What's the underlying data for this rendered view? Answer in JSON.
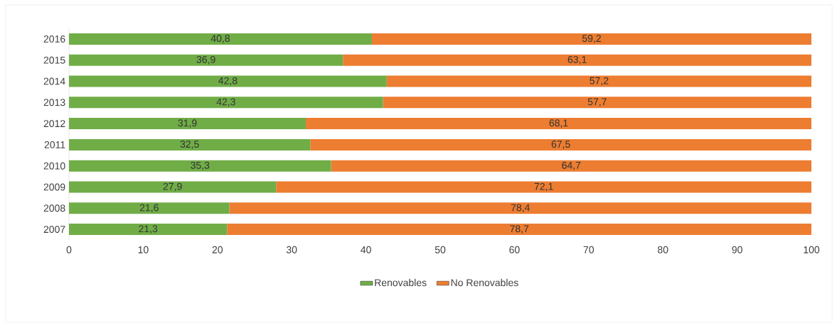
{
  "chart_data": {
    "type": "bar",
    "orientation": "horizontal",
    "stacked": true,
    "categories": [
      "2016",
      "2015",
      "2014",
      "2013",
      "2012",
      "2011",
      "2010",
      "2009",
      "2008",
      "2007"
    ],
    "series": [
      {
        "name": "Renovables",
        "color": "#70ad47",
        "values": [
          40.8,
          36.9,
          42.8,
          42.3,
          31.9,
          32.5,
          35.3,
          27.9,
          21.6,
          21.3
        ],
        "value_labels": [
          "40,8",
          "36,9",
          "42,8",
          "42,3",
          "31,9",
          "32,5",
          "35,3",
          "27,9",
          "21,6",
          "21,3"
        ]
      },
      {
        "name": "No Renovables",
        "color": "#ed7d31",
        "values": [
          59.2,
          63.1,
          57.2,
          57.7,
          68.1,
          67.5,
          64.7,
          72.1,
          78.4,
          78.7
        ],
        "value_labels": [
          "59,2",
          "63,1",
          "57,2",
          "57,7",
          "68,1",
          "67,5",
          "64,7",
          "72,1",
          "78,4",
          "78,7"
        ]
      }
    ],
    "xlim": [
      0,
      100
    ],
    "xticks": [
      0,
      10,
      20,
      30,
      40,
      50,
      60,
      70,
      80,
      90,
      100
    ],
    "legend": "bottom"
  }
}
